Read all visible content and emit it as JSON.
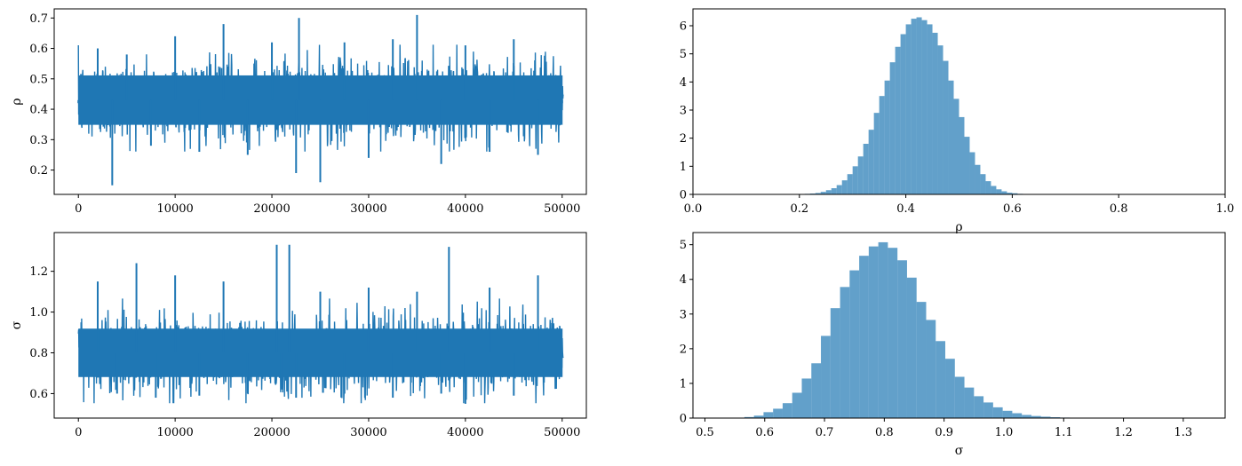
{
  "chart_data": [
    {
      "type": "line",
      "panel": "trace-rho",
      "ylabel": "ρ",
      "xlabel": "",
      "xlim": [
        -2500,
        52500
      ],
      "ylim": [
        0.12,
        0.73
      ],
      "xticks": [
        0,
        10000,
        20000,
        30000,
        40000,
        50000
      ],
      "yticks": [
        0.2,
        0.3,
        0.4,
        0.5,
        0.6,
        0.7
      ],
      "color": "#1f77b4",
      "series": [
        {
          "x": [
            0,
            2000,
            3500,
            5000,
            7500,
            10000,
            12500,
            15000,
            17500,
            20000,
            22500,
            22800,
            25000,
            27500,
            30000,
            32500,
            35000,
            37500,
            40000,
            42500,
            45000,
            47500,
            50000
          ],
          "y": [
            0.42,
            0.6,
            0.15,
            0.58,
            0.28,
            0.64,
            0.26,
            0.68,
            0.25,
            0.62,
            0.19,
            0.7,
            0.16,
            0.62,
            0.24,
            0.63,
            0.71,
            0.22,
            0.61,
            0.26,
            0.63,
            0.25,
            0.42
          ]
        }
      ]
    },
    {
      "type": "bar",
      "panel": "hist-rho",
      "xlabel": "ρ",
      "ylabel": "",
      "xlim": [
        0.0,
        1.0
      ],
      "ylim": [
        0,
        6.6
      ],
      "xticks": [
        0.0,
        0.2,
        0.4,
        0.6,
        0.8,
        1.0
      ],
      "yticks": [
        0,
        1,
        2,
        3,
        4,
        5,
        6
      ],
      "color": "#1f77b4",
      "opacity": 0.7,
      "bin_width": 0.01,
      "bins": [
        0.2,
        0.21,
        0.22,
        0.23,
        0.24,
        0.25,
        0.26,
        0.27,
        0.28,
        0.29,
        0.3,
        0.31,
        0.32,
        0.33,
        0.34,
        0.35,
        0.36,
        0.37,
        0.38,
        0.39,
        0.4,
        0.41,
        0.42,
        0.43,
        0.44,
        0.45,
        0.46,
        0.47,
        0.48,
        0.49,
        0.5,
        0.51,
        0.52,
        0.53,
        0.54,
        0.55,
        0.56,
        0.57,
        0.58,
        0.59,
        0.6,
        0.61,
        0.62,
        0.63,
        0.64,
        0.65,
        0.66,
        0.67
      ],
      "values": [
        0.01,
        0.02,
        0.03,
        0.05,
        0.09,
        0.15,
        0.22,
        0.33,
        0.5,
        0.72,
        1.0,
        1.35,
        1.8,
        2.3,
        2.9,
        3.5,
        4.05,
        4.7,
        5.25,
        5.7,
        6.05,
        6.25,
        6.3,
        6.2,
        6.05,
        5.75,
        5.3,
        4.75,
        4.05,
        3.4,
        2.75,
        2.05,
        1.5,
        1.05,
        0.72,
        0.47,
        0.3,
        0.18,
        0.11,
        0.06,
        0.04,
        0.02,
        0.01,
        0.01,
        0.005,
        0.003,
        0.002,
        0.001
      ]
    },
    {
      "type": "line",
      "panel": "trace-sigma",
      "ylabel": "σ",
      "xlabel": "",
      "xlim": [
        -2500,
        52500
      ],
      "ylim": [
        0.48,
        1.39
      ],
      "xticks": [
        0,
        10000,
        20000,
        30000,
        40000,
        50000
      ],
      "yticks": [
        0.6,
        0.8,
        1.0,
        1.2
      ],
      "color": "#1f77b4",
      "series": [
        {
          "x": [
            0,
            2000,
            4000,
            6000,
            8000,
            10000,
            12500,
            15000,
            17500,
            20500,
            21000,
            21800,
            22500,
            25000,
            27500,
            30000,
            32500,
            35000,
            37500,
            38300,
            40000,
            42500,
            45000,
            47500,
            50000
          ],
          "y": [
            0.8,
            1.15,
            0.6,
            1.24,
            0.58,
            1.18,
            0.59,
            1.15,
            0.6,
            1.33,
            0.62,
            1.33,
            0.58,
            1.1,
            0.6,
            1.12,
            0.58,
            1.1,
            0.6,
            1.32,
            0.55,
            1.12,
            0.59,
            1.18,
            0.8
          ]
        }
      ]
    },
    {
      "type": "bar",
      "panel": "hist-sigma",
      "xlabel": "σ",
      "ylabel": "",
      "xlim": [
        0.48,
        1.37
      ],
      "ylim": [
        0,
        5.35
      ],
      "xticks": [
        0.5,
        0.6,
        0.7,
        0.8,
        0.9,
        1.0,
        1.1,
        1.2,
        1.3
      ],
      "yticks": [
        0,
        1,
        2,
        3,
        4,
        5
      ],
      "color": "#1f77b4",
      "opacity": 0.7,
      "bin_width": 0.016,
      "bins": [
        0.55,
        0.566,
        0.582,
        0.598,
        0.614,
        0.63,
        0.646,
        0.662,
        0.678,
        0.694,
        0.71,
        0.726,
        0.742,
        0.758,
        0.774,
        0.79,
        0.806,
        0.822,
        0.838,
        0.854,
        0.87,
        0.886,
        0.902,
        0.918,
        0.934,
        0.95,
        0.966,
        0.982,
        0.998,
        1.014,
        1.03,
        1.046,
        1.062,
        1.078,
        1.094,
        1.11,
        1.126,
        1.142,
        1.158
      ],
      "values": [
        0.01,
        0.03,
        0.07,
        0.17,
        0.27,
        0.43,
        0.73,
        1.14,
        1.58,
        2.37,
        3.17,
        3.78,
        4.26,
        4.68,
        4.95,
        5.07,
        4.91,
        4.55,
        4.05,
        3.35,
        2.83,
        2.22,
        1.71,
        1.19,
        0.88,
        0.63,
        0.45,
        0.31,
        0.21,
        0.14,
        0.09,
        0.06,
        0.04,
        0.025,
        0.015,
        0.008,
        0.005,
        0.003,
        0.002
      ]
    }
  ]
}
